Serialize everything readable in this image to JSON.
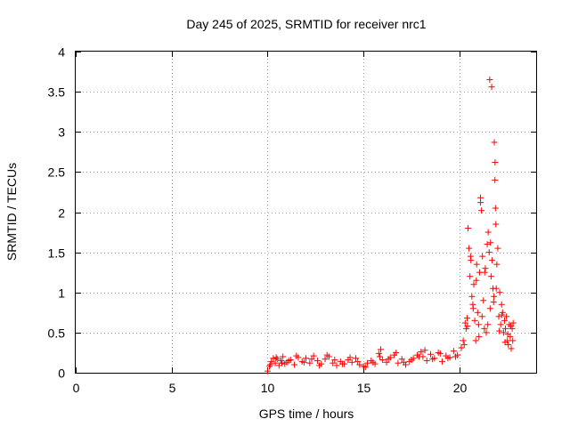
{
  "chart_data": {
    "type": "scatter",
    "title": "Day 245 of 2025, SRMTID for receiver nrc1",
    "xlabel": "GPS time / hours",
    "ylabel": "SRMTID / TECUs",
    "xlim": [
      0,
      24
    ],
    "ylim": [
      0,
      4
    ],
    "x_ticks": [
      0,
      5,
      10,
      15,
      20
    ],
    "x_tick_labels": [
      "0",
      "5",
      "10",
      "15",
      "20"
    ],
    "y_ticks": [
      0,
      0.5,
      1,
      1.5,
      2,
      2.5,
      3,
      3.5,
      4
    ],
    "y_tick_labels": [
      "0",
      "0.5",
      "1",
      "1.5",
      "2",
      "2.5",
      "3",
      "3.5",
      "4"
    ],
    "grid": true,
    "marker": "plus",
    "color": "#ff0000",
    "series": [
      {
        "name": "SRMTID",
        "x": [
          10.0,
          10.1,
          10.2,
          10.3,
          10.4,
          10.5,
          10.6,
          10.7,
          10.8,
          10.9,
          11.0,
          11.2,
          11.4,
          11.6,
          11.8,
          12.0,
          12.2,
          12.4,
          12.6,
          12.8,
          13.0,
          13.2,
          13.4,
          13.6,
          13.8,
          14.0,
          14.2,
          14.4,
          14.6,
          14.8,
          15.0,
          15.2,
          15.4,
          15.6,
          15.8,
          15.9,
          16.0,
          16.2,
          16.4,
          16.6,
          16.8,
          17.0,
          17.2,
          17.4,
          17.6,
          17.8,
          18.0,
          18.1,
          18.3,
          18.5,
          18.7,
          18.9,
          19.1,
          19.3,
          19.5,
          19.7,
          19.9,
          20.1,
          20.2,
          20.3,
          20.35,
          20.4,
          20.45,
          20.5,
          20.55,
          20.6,
          20.65,
          20.7,
          20.75,
          20.8,
          20.85,
          20.9,
          20.95,
          21.0,
          21.05,
          21.1,
          21.15,
          21.2,
          21.25,
          21.3,
          21.35,
          21.4,
          21.45,
          21.5,
          21.55,
          21.6,
          21.65,
          21.7,
          21.75,
          21.8,
          21.85,
          21.9,
          21.95,
          22.0,
          22.05,
          22.1,
          22.15,
          22.2,
          22.25,
          22.3,
          22.35,
          22.4,
          22.45,
          22.5,
          22.55,
          22.6,
          22.65,
          22.7,
          22.75,
          22.8,
          10.15,
          10.45,
          10.75,
          11.1,
          11.5,
          11.9,
          12.3,
          12.7,
          13.1,
          13.5,
          13.9,
          14.3,
          14.7,
          15.1,
          15.5,
          15.85,
          16.3,
          16.7,
          17.1,
          17.5,
          17.9,
          18.2,
          18.6,
          19.0,
          19.4,
          19.8,
          20.25,
          20.42,
          20.58,
          20.72,
          20.88,
          21.02,
          21.18,
          21.32,
          21.48,
          21.62,
          21.78,
          21.92,
          22.08,
          22.22,
          22.38,
          22.52,
          22.68,
          22.78,
          21.58,
          21.82,
          21.68,
          21.86,
          21.1,
          21.88
        ],
        "y": [
          0.02,
          0.08,
          0.14,
          0.18,
          0.12,
          0.17,
          0.09,
          0.15,
          0.2,
          0.11,
          0.13,
          0.16,
          0.1,
          0.19,
          0.14,
          0.18,
          0.12,
          0.21,
          0.15,
          0.11,
          0.17,
          0.2,
          0.12,
          0.09,
          0.14,
          0.11,
          0.16,
          0.13,
          0.18,
          0.1,
          0.08,
          0.12,
          0.15,
          0.11,
          0.24,
          0.29,
          0.16,
          0.13,
          0.19,
          0.22,
          0.12,
          0.17,
          0.1,
          0.14,
          0.18,
          0.22,
          0.26,
          0.2,
          0.15,
          0.23,
          0.18,
          0.25,
          0.14,
          0.21,
          0.19,
          0.27,
          0.22,
          0.31,
          0.4,
          0.62,
          0.55,
          0.68,
          1.8,
          1.55,
          1.2,
          1.4,
          0.95,
          0.85,
          1.1,
          0.65,
          0.4,
          1.35,
          0.75,
          0.6,
          1.25,
          2.18,
          2.02,
          1.45,
          0.9,
          0.55,
          1.3,
          0.5,
          1.6,
          1.75,
          1.5,
          0.8,
          1.2,
          1.4,
          1.05,
          0.95,
          2.4,
          1.85,
          1.35,
          1.55,
          0.7,
          1.0,
          0.6,
          0.85,
          0.75,
          0.5,
          0.65,
          0.55,
          0.7,
          0.4,
          0.35,
          0.6,
          0.45,
          0.3,
          0.55,
          0.62,
          0.1,
          0.19,
          0.12,
          0.15,
          0.21,
          0.13,
          0.17,
          0.09,
          0.22,
          0.16,
          0.11,
          0.19,
          0.14,
          0.07,
          0.13,
          0.2,
          0.17,
          0.25,
          0.13,
          0.16,
          0.2,
          0.28,
          0.17,
          0.24,
          0.18,
          0.2,
          0.35,
          0.58,
          1.45,
          0.8,
          1.15,
          0.45,
          0.7,
          1.25,
          0.6,
          1.62,
          0.88,
          1.05,
          0.52,
          0.72,
          0.38,
          0.48,
          0.58,
          0.4,
          3.65,
          2.87,
          3.56,
          2.62,
          2.12,
          2.05
        ]
      }
    ]
  }
}
